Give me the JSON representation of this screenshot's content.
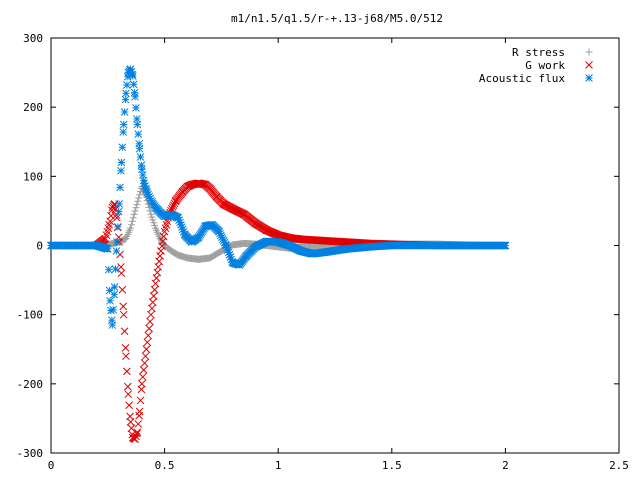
{
  "chart_data": {
    "type": "scatter",
    "title": "m1/n1.5/q1.5/r-+.13-j68/M5.0/512",
    "xlabel": "",
    "ylabel": "",
    "xlim": [
      0,
      2.5
    ],
    "ylim": [
      -300,
      300
    ],
    "x_ticks": [
      "0",
      "0.5",
      "1",
      "1.5",
      "2",
      "2.5"
    ],
    "y_ticks": [
      "300",
      "200",
      "100",
      "0",
      "-100",
      "-200",
      "-300"
    ],
    "grid": false,
    "legend_position": "top-right",
    "series": [
      {
        "name": "R stress",
        "marker": "plus",
        "color": "#a0a0a0",
        "x": [
          0,
          0.1,
          0.2,
          0.26,
          0.3,
          0.33,
          0.35,
          0.37,
          0.4,
          0.42,
          0.44,
          0.46,
          0.48,
          0.5,
          0.53,
          0.56,
          0.6,
          0.65,
          0.7,
          0.75,
          0.8,
          0.85,
          0.9,
          0.95,
          1.0,
          1.05,
          1.1,
          1.2,
          1.3,
          1.4,
          1.5,
          1.6,
          1.7,
          1.8,
          1.9,
          2.0
        ],
        "y": [
          0,
          0,
          0,
          2,
          5,
          10,
          25,
          50,
          85,
          70,
          45,
          25,
          10,
          0,
          -8,
          -14,
          -18,
          -20,
          -18,
          -8,
          1,
          3,
          2,
          0,
          -2,
          -4,
          -2,
          0,
          0,
          1,
          1,
          2,
          2,
          1,
          0,
          0
        ]
      },
      {
        "name": "G work",
        "marker": "cross",
        "color": "#e00000",
        "x": [
          0,
          0.1,
          0.2,
          0.24,
          0.26,
          0.27,
          0.28,
          0.29,
          0.3,
          0.31,
          0.32,
          0.33,
          0.34,
          0.35,
          0.36,
          0.37,
          0.38,
          0.39,
          0.4,
          0.42,
          0.44,
          0.46,
          0.48,
          0.5,
          0.52,
          0.55,
          0.58,
          0.6,
          0.62,
          0.65,
          0.68,
          0.7,
          0.73,
          0.76,
          0.8,
          0.85,
          0.9,
          0.95,
          1.0,
          1.05,
          1.1,
          1.2,
          1.3,
          1.4,
          1.5,
          1.6,
          1.7,
          1.8,
          1.9,
          2.0
        ],
        "y": [
          0,
          0,
          0,
          10,
          35,
          55,
          60,
          40,
          5,
          -40,
          -100,
          -160,
          -215,
          -255,
          -278,
          -280,
          -270,
          -240,
          -200,
          -150,
          -100,
          -55,
          -15,
          20,
          45,
          65,
          78,
          85,
          88,
          90,
          88,
          82,
          70,
          60,
          53,
          45,
          32,
          22,
          15,
          11,
          9,
          7,
          5,
          3,
          2,
          1,
          0,
          0,
          0,
          0
        ]
      },
      {
        "name": "Acoustic flux",
        "marker": "star",
        "color": "#0080e0",
        "x": [
          0,
          0.1,
          0.2,
          0.25,
          0.26,
          0.27,
          0.28,
          0.29,
          0.3,
          0.31,
          0.32,
          0.33,
          0.34,
          0.35,
          0.36,
          0.37,
          0.38,
          0.39,
          0.4,
          0.41,
          0.42,
          0.44,
          0.46,
          0.48,
          0.5,
          0.53,
          0.56,
          0.59,
          0.62,
          0.65,
          0.68,
          0.71,
          0.74,
          0.77,
          0.8,
          0.83,
          0.86,
          0.9,
          0.95,
          1.0,
          1.05,
          1.1,
          1.15,
          1.2,
          1.3,
          1.4,
          1.5,
          1.6,
          1.7,
          1.8,
          1.9,
          2.0
        ],
        "y": [
          0,
          0,
          0,
          -5,
          -80,
          -115,
          -60,
          5,
          60,
          120,
          175,
          220,
          250,
          255,
          245,
          215,
          175,
          140,
          110,
          90,
          80,
          65,
          55,
          48,
          42,
          45,
          40,
          15,
          5,
          12,
          28,
          30,
          20,
          0,
          -25,
          -28,
          -15,
          -2,
          6,
          5,
          0,
          -8,
          -12,
          -10,
          -5,
          -2,
          0,
          0,
          0,
          0,
          0,
          0
        ]
      }
    ]
  }
}
